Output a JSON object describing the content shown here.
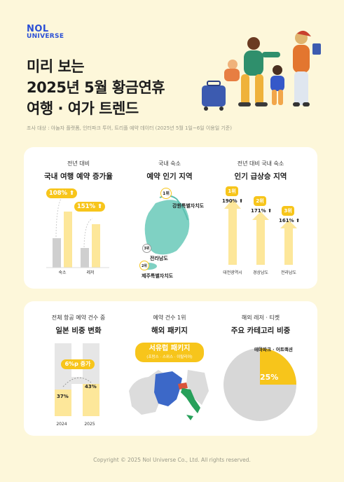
{
  "logo": {
    "line1": "NOL",
    "line2": "UNIVERSE"
  },
  "title": {
    "line1": "미리 보는",
    "line2": "2025년 5월 황금연휴",
    "line3": "여행 · 여가 트렌드"
  },
  "note": "조사 대상 : 야놀자 플랫폼, 인터파크 투어, 트리플 예약 데이터 (2025년 5월 1일~6일 이용일 기준)",
  "sec1": {
    "sub": "전년 대비",
    "main": "국내 여행 예약 증가율",
    "bars": [
      {
        "label": "숙소",
        "value": "108%",
        "growth": 1.08
      },
      {
        "label": "레저",
        "value": "151%",
        "growth": 1.51
      }
    ]
  },
  "sec2": {
    "sub": "국내 숙소",
    "main": "예약 인기 지역",
    "ranks": [
      {
        "rank": "1위",
        "region": "강원특별자치도"
      },
      {
        "rank": "3위",
        "region": "전라남도"
      },
      {
        "rank": "2위",
        "region": "제주특별자치도"
      }
    ]
  },
  "sec3": {
    "sub": "전년 대비 국내 숙소",
    "main": "인기 급상승 지역",
    "items": [
      {
        "rank": "1위",
        "value": "190%",
        "region": "대전광역시"
      },
      {
        "rank": "2위",
        "value": "171%",
        "region": "경상남도"
      },
      {
        "rank": "3위",
        "value": "161%",
        "region": "전라남도"
      }
    ]
  },
  "sec4": {
    "sub": "전체 항공 예약 건수 중",
    "main": "일본 비중 변화",
    "badge": "6%p 증가",
    "bars": [
      {
        "year": "2024",
        "value": "37%",
        "share": 37
      },
      {
        "year": "2025",
        "value": "43%",
        "share": 43
      }
    ]
  },
  "sec5": {
    "sub": "예약 건수 1위",
    "main": "해외 패키지",
    "badge": "서유럽 패키지",
    "badge_sub": "(프랑스 · 스위스 · 이탈리아)"
  },
  "sec6": {
    "sub": "해외 레저 · 티켓",
    "main": "주요 카테고리 비중",
    "slice_label": "테마파크 · 어트랙션",
    "slice_value": "25%",
    "share": 25
  },
  "footer": "Copyright © 2025 Nol Universe Co., Ltd. All rights reserved.",
  "colors": {
    "accent": "#f7c51b",
    "light": "#fde79a",
    "gray": "#cfcfcf",
    "bg": "#fdf7da",
    "brand": "#2a4fd6"
  }
}
